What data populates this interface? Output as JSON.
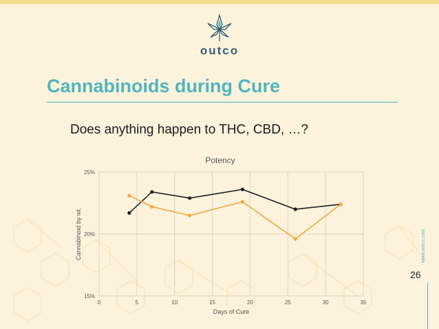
{
  "colors": {
    "background": "#fdf3dc",
    "accent": "#4fb6bf",
    "brand": "#355e73",
    "series_dark": "#1f1f1f",
    "series_orange": "#f0a83c"
  },
  "brand": {
    "name": "outco",
    "logo_icon": "cannabis-leaf-star-icon"
  },
  "slide": {
    "title": "Cannabinoids during Cure",
    "subtitle": "Does anything happen to THC, CBD, …?",
    "page_number": "26",
    "website": "www.outco.com"
  },
  "chart_data": {
    "type": "line",
    "title": "Potency",
    "xlabel": "Days of Cure",
    "ylabel": "Cannabinoid by wt.",
    "xlim": [
      0,
      35
    ],
    "ylim": [
      15,
      25
    ],
    "x_ticks": [
      "0",
      "5",
      "10",
      "15",
      "20",
      "25",
      "30",
      "35"
    ],
    "y_ticks": [
      "15%",
      "20%",
      "25%"
    ],
    "y_tick_values": [
      15,
      20,
      25
    ],
    "grid": true,
    "legend": "none",
    "series": [
      {
        "color": "#1f1f1f",
        "x": [
          4,
          7,
          12,
          19,
          26,
          32
        ],
        "y": [
          21.7,
          23.4,
          22.9,
          23.6,
          22.0,
          22.4
        ]
      },
      {
        "color": "#f0a83c",
        "x": [
          4,
          7,
          12,
          19,
          26,
          32
        ],
        "y": [
          23.1,
          22.2,
          21.5,
          22.6,
          19.6,
          22.4
        ]
      }
    ]
  }
}
